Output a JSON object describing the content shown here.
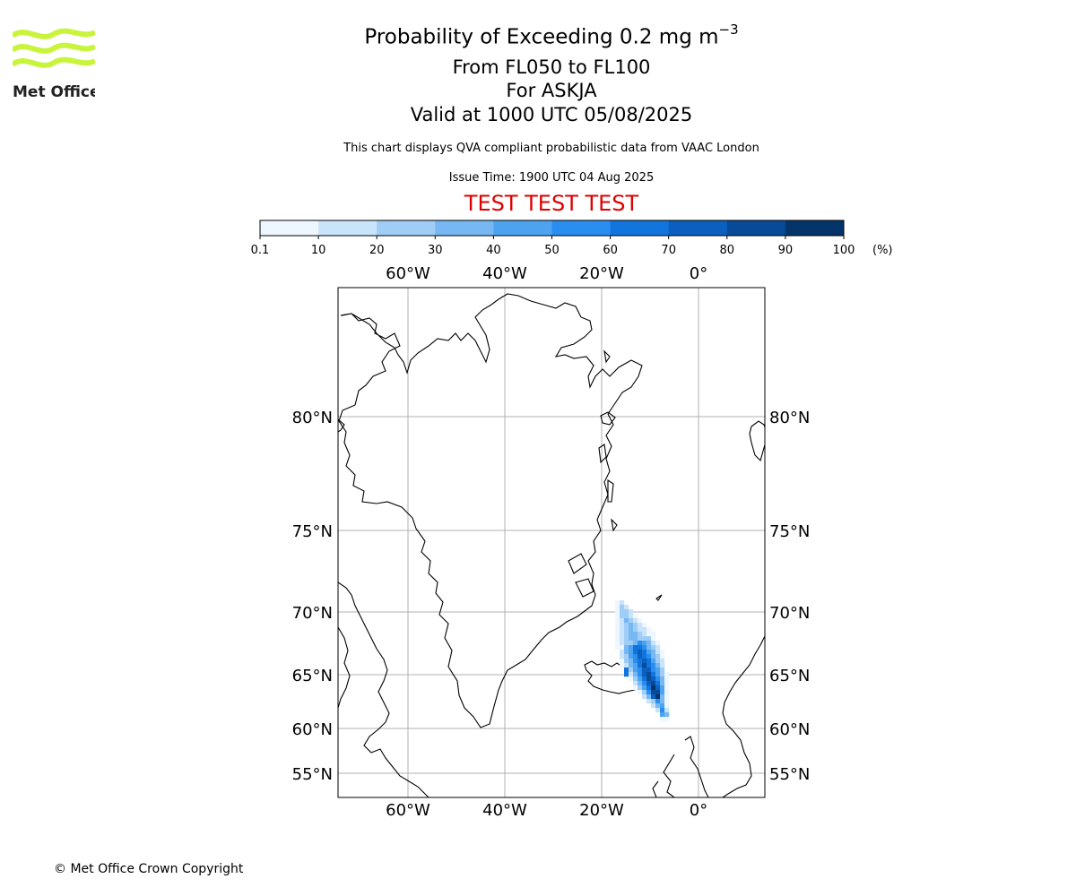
{
  "header": {
    "title": "Probability of Exceeding 0.2 mg m",
    "title_superscript": "−3",
    "level_range": "From FL050 to FL100",
    "volcano": "For ASKJA",
    "valid_time": "Valid at 1000 UTC 05/08/2025",
    "disclaimer": "This chart displays QVA compliant probabilistic data from VAAC London",
    "issue_time": "Issue Time: 1900 UTC 04 Aug 2025",
    "test_banner": "TEST TEST TEST",
    "test_banner_color": "#e00000"
  },
  "logo": {
    "text": "Met Office",
    "icon": "met-office-waves-logo",
    "color": "#c8f53c"
  },
  "colorbar": {
    "ticks": [
      "0.1",
      "10",
      "20",
      "30",
      "40",
      "50",
      "60",
      "70",
      "80",
      "90",
      "100"
    ],
    "unit": "(%)",
    "colors": [
      "#eef6ff",
      "#c8e3fa",
      "#a0cdf5",
      "#77b7f2",
      "#4ea3f0",
      "#2a8ef0",
      "#1274dd",
      "#0a5fbf",
      "#064a98",
      "#03346a"
    ]
  },
  "map": {
    "lon_labels": [
      "60°W",
      "40°W",
      "20°W",
      "0°"
    ],
    "lat_labels": [
      "80°N",
      "75°N",
      "70°N",
      "65°N",
      "60°N",
      "55°N"
    ],
    "gridline_color": "#b0b0b0",
    "volcano_name": "ASKJA"
  },
  "footer": {
    "copyright": "© Met Office Crown Copyright"
  }
}
